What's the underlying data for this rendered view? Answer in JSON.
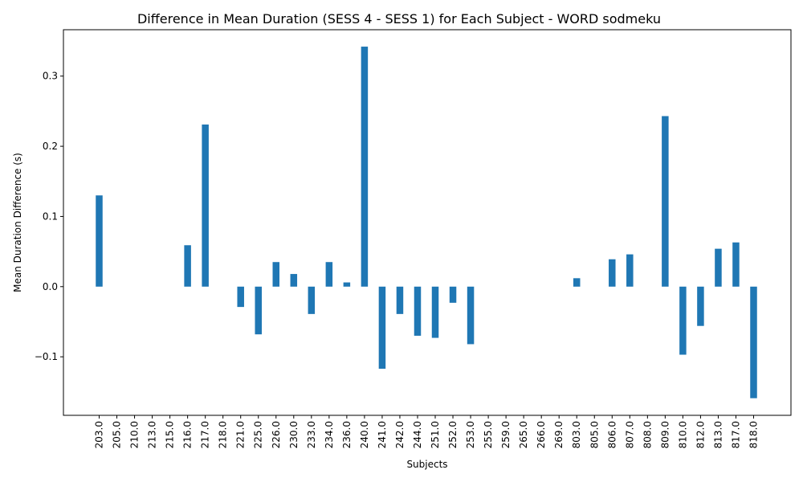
{
  "chart_data": {
    "type": "bar",
    "title": "Difference in Mean Duration (SESS 4 - SESS 1) for Each Subject - WORD sodmeku",
    "xlabel": "Subjects",
    "ylabel": "Mean Duration Difference (s)",
    "categories": [
      "203.0",
      "205.0",
      "210.0",
      "213.0",
      "215.0",
      "216.0",
      "217.0",
      "218.0",
      "221.0",
      "225.0",
      "226.0",
      "230.0",
      "233.0",
      "234.0",
      "236.0",
      "240.0",
      "241.0",
      "242.0",
      "244.0",
      "251.0",
      "252.0",
      "253.0",
      "255.0",
      "259.0",
      "265.0",
      "266.0",
      "269.0",
      "803.0",
      "805.0",
      "806.0",
      "807.0",
      "808.0",
      "809.0",
      "810.0",
      "812.0",
      "813.0",
      "817.0",
      "818.0"
    ],
    "values": [
      0.13,
      0.0,
      0.0,
      0.0,
      0.0,
      0.059,
      0.231,
      0.0,
      -0.029,
      -0.068,
      0.035,
      0.018,
      -0.039,
      0.035,
      0.006,
      0.342,
      -0.117,
      -0.039,
      -0.07,
      -0.073,
      -0.023,
      -0.082,
      0.0,
      0.0,
      0.0,
      0.0,
      0.0,
      0.012,
      0.0,
      0.039,
      0.046,
      0.0,
      0.243,
      -0.097,
      -0.056,
      0.054,
      0.063,
      -0.159
    ],
    "yticks": [
      -0.1,
      0.0,
      0.1,
      0.2,
      0.3
    ],
    "yticklabels": [
      "−0.1",
      "0.0",
      "0.1",
      "0.2",
      "0.3"
    ],
    "ylim": [
      -0.1834,
      0.3661
    ],
    "bar_color": "#1f77b4",
    "grid": false,
    "legend": "none"
  }
}
